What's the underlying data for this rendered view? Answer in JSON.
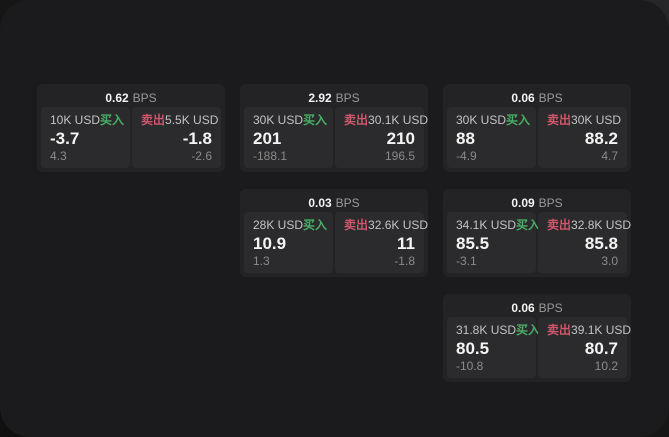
{
  "colors": {
    "background": "#151515",
    "panel": "#1b1b1d",
    "card": "#232325",
    "subpanel": "#2b2b2d",
    "text_primary": "#f4f4f4",
    "text_secondary": "#c3c3c3",
    "text_muted": "#8a8a8a",
    "buy_green": "#4aae65",
    "sell_red": "#d0566c"
  },
  "labels": {
    "bps_unit": "BPS",
    "buy": "买入",
    "sell": "卖出"
  },
  "cards": [
    {
      "bps": "0.62",
      "buy": {
        "amount": "10K USD",
        "value": "-3.7",
        "delta": "4.3"
      },
      "sell": {
        "amount": "5.5K USD",
        "value": "-1.8",
        "delta": "-2.6"
      }
    },
    {
      "bps": "2.92",
      "buy": {
        "amount": "30K USD",
        "value": "201",
        "delta": "-188.1"
      },
      "sell": {
        "amount": "30.1K USD",
        "value": "210",
        "delta": "196.5"
      }
    },
    {
      "bps": "0.06",
      "buy": {
        "amount": "30K USD",
        "value": "88",
        "delta": "-4.9"
      },
      "sell": {
        "amount": "30K USD",
        "value": "88.2",
        "delta": "4.7"
      }
    },
    {
      "bps": "0.03",
      "buy": {
        "amount": "28K USD",
        "value": "10.9",
        "delta": "1.3"
      },
      "sell": {
        "amount": "32.6K USD",
        "value": "11",
        "delta": "-1.8"
      }
    },
    {
      "bps": "0.09",
      "buy": {
        "amount": "34.1K USD",
        "value": "85.5",
        "delta": "-3.1"
      },
      "sell": {
        "amount": "32.8K USD",
        "value": "85.8",
        "delta": "3.0"
      }
    },
    {
      "bps": "0.06",
      "buy": {
        "amount": "31.8K USD",
        "value": "80.5",
        "delta": "-10.8"
      },
      "sell": {
        "amount": "39.1K USD",
        "value": "80.7",
        "delta": "10.2"
      }
    }
  ]
}
